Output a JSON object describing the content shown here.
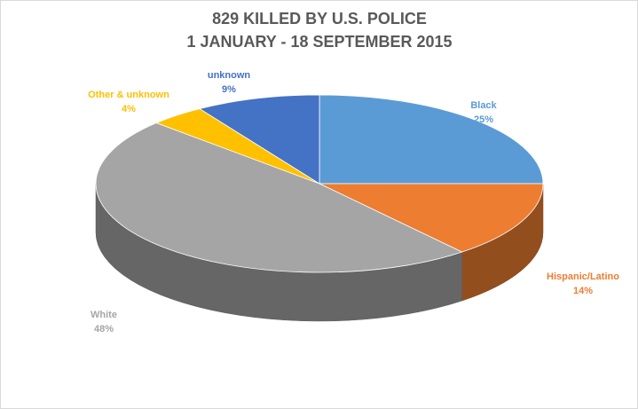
{
  "chart_data": {
    "type": "pie3d",
    "title": "829 KILLED BY U.S. POLICE",
    "subtitle": "1 JANUARY - 18 SEPTEMBER 2015",
    "categories": [
      "Black",
      "Hispanic/Latino",
      "White",
      "Other & unknown",
      "unknown"
    ],
    "values": [
      25,
      14,
      48,
      4,
      9
    ],
    "value_labels": [
      "25%",
      "14%",
      "48%",
      "4%",
      "9%"
    ],
    "colors": [
      "#5b9bd5",
      "#ed7d31",
      "#a5a5a5",
      "#ffc000",
      "#4472c4"
    ]
  }
}
